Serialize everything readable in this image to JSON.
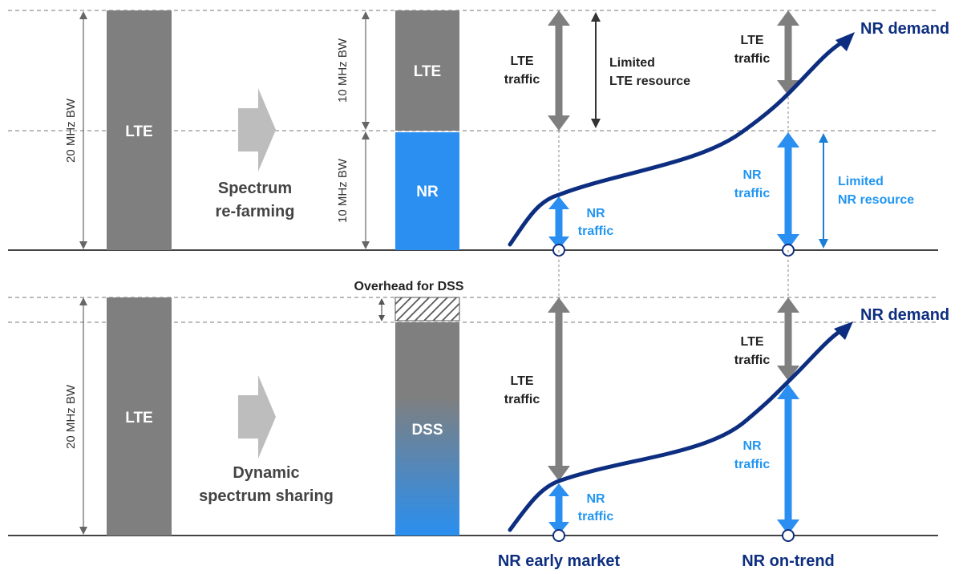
{
  "colors": {
    "lte_bar": "#7f7f7f",
    "nr_bar": "#2a8ff0",
    "navy_curve": "#0d2e80",
    "nr_text": "#2196f3",
    "dss_top": "#7f7f7f",
    "dss_bottom": "#2a8ff0"
  },
  "top": {
    "bw_full": "20 MHz BW",
    "lte_bar_label": "LTE",
    "transition_label": [
      "Spectrum",
      "re-farming"
    ],
    "bw_upper": "10 MHz BW",
    "bw_lower": "10 MHz BW",
    "split_lte_label": "LTE",
    "split_nr_label": "NR",
    "early_lte_traffic": [
      "LTE",
      "traffic"
    ],
    "limited_lte": [
      "Limited",
      "LTE resource"
    ],
    "early_nr_traffic": [
      "NR",
      "traffic"
    ],
    "trend_lte_traffic": [
      "LTE",
      "traffic"
    ],
    "trend_nr_traffic": [
      "NR",
      "traffic"
    ],
    "limited_nr": [
      "Limited",
      "NR resource"
    ],
    "demand_label": "NR demand"
  },
  "bottom": {
    "overhead_label": "Overhead for DSS",
    "bw_full": "20 MHz BW",
    "lte_bar_label": "LTE",
    "transition_label": [
      "Dynamic",
      "spectrum sharing"
    ],
    "dss_label": "DSS",
    "early_lte_traffic": [
      "LTE",
      "traffic"
    ],
    "early_nr_traffic": [
      "NR",
      "traffic"
    ],
    "trend_lte_traffic": [
      "LTE",
      "traffic"
    ],
    "trend_nr_traffic": [
      "NR",
      "traffic"
    ],
    "demand_label": "NR demand"
  },
  "axis": {
    "early_market": "NR early market",
    "on_trend": "NR on-trend"
  },
  "icons": {
    "transition_arrow": "right-arrow-icon",
    "market_marker": "circle-marker-icon"
  }
}
